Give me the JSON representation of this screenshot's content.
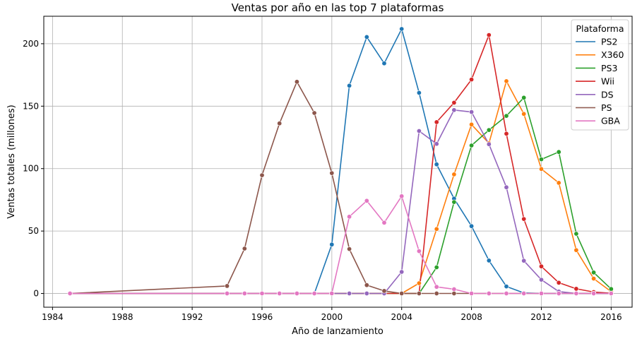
{
  "chart_data": {
    "type": "line",
    "title": "Ventas por año en las top 7 plataformas",
    "xlabel": "Año de lanzamiento",
    "ylabel": "Ventas totales (millones)",
    "xlim": [
      1983.5,
      2017.2
    ],
    "ylim": [
      -11,
      222
    ],
    "xticks": [
      1984,
      1988,
      1992,
      1996,
      2000,
      2004,
      2008,
      2012,
      2016
    ],
    "yticks": [
      0,
      50,
      100,
      150,
      200
    ],
    "grid": true,
    "legend": {
      "title": "Plataforma",
      "position": "top-right"
    },
    "series": [
      {
        "name": "PS2",
        "color": "#1f77b4",
        "points": [
          [
            1985,
            0
          ],
          [
            1994,
            0
          ],
          [
            1995,
            0
          ],
          [
            1996,
            0
          ],
          [
            1997,
            0
          ],
          [
            1998,
            0
          ],
          [
            1999,
            0
          ],
          [
            2000,
            39.2
          ],
          [
            2001,
            166.4
          ],
          [
            2002,
            205.4
          ],
          [
            2003,
            184.3
          ],
          [
            2004,
            211.8
          ],
          [
            2005,
            160.7
          ],
          [
            2006,
            103.4
          ],
          [
            2007,
            75.99
          ],
          [
            2008,
            53.9
          ],
          [
            2009,
            26.4
          ],
          [
            2010,
            5.6
          ],
          [
            2011,
            0.45
          ],
          [
            2012,
            0
          ],
          [
            2013,
            0
          ],
          [
            2014,
            0
          ],
          [
            2015,
            0
          ],
          [
            2016,
            0
          ]
        ]
      },
      {
        "name": "X360",
        "color": "#ff7f0e",
        "points": [
          [
            1985,
            0
          ],
          [
            1994,
            0
          ],
          [
            1995,
            0
          ],
          [
            1996,
            0
          ],
          [
            1997,
            0
          ],
          [
            1998,
            0
          ],
          [
            1999,
            0
          ],
          [
            2000,
            0
          ],
          [
            2001,
            0
          ],
          [
            2002,
            0
          ],
          [
            2003,
            0
          ],
          [
            2004,
            0
          ],
          [
            2005,
            8.25
          ],
          [
            2006,
            51.6
          ],
          [
            2007,
            95.4
          ],
          [
            2008,
            135.3
          ],
          [
            2009,
            120.3
          ],
          [
            2010,
            170.0
          ],
          [
            2011,
            143.8
          ],
          [
            2012,
            99.7
          ],
          [
            2013,
            88.6
          ],
          [
            2014,
            34.7
          ],
          [
            2015,
            11.9
          ],
          [
            2016,
            1.5
          ]
        ]
      },
      {
        "name": "PS3",
        "color": "#2ca02c",
        "points": [
          [
            1985,
            0
          ],
          [
            1994,
            0
          ],
          [
            1995,
            0
          ],
          [
            1996,
            0
          ],
          [
            1997,
            0
          ],
          [
            1998,
            0
          ],
          [
            1999,
            0
          ],
          [
            2000,
            0
          ],
          [
            2001,
            0
          ],
          [
            2002,
            0
          ],
          [
            2003,
            0
          ],
          [
            2004,
            0
          ],
          [
            2005,
            0
          ],
          [
            2006,
            20.96
          ],
          [
            2007,
            73.2
          ],
          [
            2008,
            118.5
          ],
          [
            2009,
            130.9
          ],
          [
            2010,
            142.2
          ],
          [
            2011,
            156.8
          ],
          [
            2012,
            107.4
          ],
          [
            2013,
            113.3
          ],
          [
            2014,
            47.8
          ],
          [
            2015,
            16.8
          ],
          [
            2016,
            3.6
          ]
        ]
      },
      {
        "name": "Wii",
        "color": "#d62728",
        "points": [
          [
            1985,
            0
          ],
          [
            1994,
            0
          ],
          [
            1995,
            0
          ],
          [
            1996,
            0
          ],
          [
            1997,
            0
          ],
          [
            1998,
            0
          ],
          [
            1999,
            0
          ],
          [
            2000,
            0
          ],
          [
            2001,
            0
          ],
          [
            2002,
            0
          ],
          [
            2003,
            0
          ],
          [
            2004,
            0
          ],
          [
            2005,
            0
          ],
          [
            2006,
            137.2
          ],
          [
            2007,
            152.8
          ],
          [
            2008,
            171.3
          ],
          [
            2009,
            206.97
          ],
          [
            2010,
            127.95
          ],
          [
            2011,
            59.65
          ],
          [
            2012,
            21.7
          ],
          [
            2013,
            8.6
          ],
          [
            2014,
            3.75
          ],
          [
            2015,
            1.14
          ],
          [
            2016,
            0.18
          ]
        ]
      },
      {
        "name": "DS",
        "color": "#9467bd",
        "points": [
          [
            1985,
            0.02
          ],
          [
            1994,
            0
          ],
          [
            1995,
            0
          ],
          [
            1996,
            0
          ],
          [
            1997,
            0
          ],
          [
            1998,
            0
          ],
          [
            1999,
            0
          ],
          [
            2000,
            0
          ],
          [
            2001,
            0
          ],
          [
            2002,
            0
          ],
          [
            2003,
            0
          ],
          [
            2004,
            17.27
          ],
          [
            2005,
            130.1
          ],
          [
            2006,
            119.8
          ],
          [
            2007,
            146.9
          ],
          [
            2008,
            145.3
          ],
          [
            2009,
            119.5
          ],
          [
            2010,
            85.0
          ],
          [
            2011,
            26.2
          ],
          [
            2012,
            11.0
          ],
          [
            2013,
            1.54
          ],
          [
            2014,
            0
          ],
          [
            2015,
            0
          ],
          [
            2016,
            0
          ]
        ]
      },
      {
        "name": "PS",
        "color": "#8c564b",
        "points": [
          [
            1985,
            0
          ],
          [
            1994,
            6.03
          ],
          [
            1995,
            35.96
          ],
          [
            1996,
            94.7
          ],
          [
            1997,
            136.2
          ],
          [
            1998,
            169.5
          ],
          [
            1999,
            144.5
          ],
          [
            2000,
            96.4
          ],
          [
            2001,
            35.6
          ],
          [
            2002,
            6.7
          ],
          [
            2003,
            2.07
          ],
          [
            2004,
            0
          ],
          [
            2005,
            0
          ],
          [
            2006,
            0
          ],
          [
            2007,
            0
          ],
          [
            2008,
            0
          ],
          [
            2009,
            0
          ],
          [
            2010,
            0
          ],
          [
            2011,
            0
          ],
          [
            2012,
            0
          ],
          [
            2013,
            0
          ],
          [
            2014,
            0
          ],
          [
            2015,
            0
          ],
          [
            2016,
            0
          ]
        ]
      },
      {
        "name": "GBA",
        "color": "#e377c2",
        "points": [
          [
            1985,
            0
          ],
          [
            1994,
            0
          ],
          [
            1995,
            0
          ],
          [
            1996,
            0
          ],
          [
            1997,
            0
          ],
          [
            1998,
            0
          ],
          [
            1999,
            0
          ],
          [
            2000,
            0.07
          ],
          [
            2001,
            61.5
          ],
          [
            2002,
            74.2
          ],
          [
            2003,
            56.7
          ],
          [
            2004,
            77.9
          ],
          [
            2005,
            33.9
          ],
          [
            2006,
            5.3
          ],
          [
            2007,
            3.4
          ],
          [
            2008,
            0
          ],
          [
            2009,
            0
          ],
          [
            2010,
            0
          ],
          [
            2011,
            0
          ],
          [
            2012,
            0
          ],
          [
            2013,
            0
          ],
          [
            2014,
            0
          ],
          [
            2015,
            0
          ],
          [
            2016,
            0
          ]
        ]
      }
    ]
  }
}
